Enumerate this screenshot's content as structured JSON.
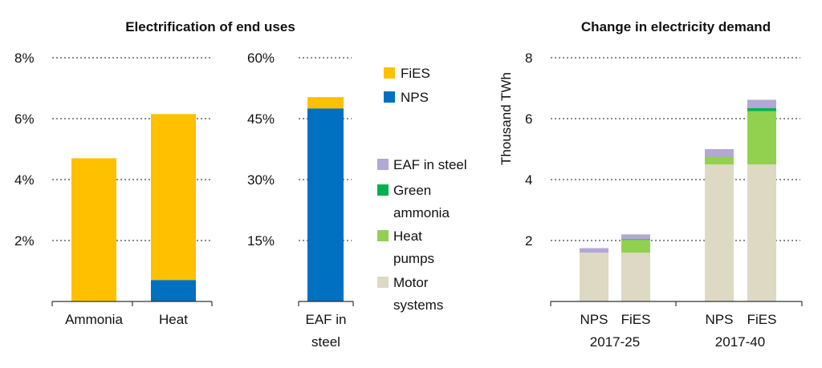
{
  "chart_data": [
    {
      "type": "bar",
      "title": "Electrification of end uses",
      "categories": [
        "Ammonia",
        "Heat"
      ],
      "ylim": [
        0,
        8
      ],
      "yticks": [
        2,
        4,
        6,
        8
      ],
      "ytick_labels": [
        "2%",
        "4%",
        "6%",
        "8%"
      ],
      "series": [
        {
          "name": "NPS",
          "values": [
            0,
            0.7
          ]
        },
        {
          "name": "FiES",
          "values": [
            4.7,
            6.15
          ]
        }
      ],
      "grid": true
    },
    {
      "type": "bar",
      "categories": [
        "EAF in steel"
      ],
      "ylim": [
        0,
        60
      ],
      "yticks": [
        15,
        30,
        45,
        60
      ],
      "ytick_labels": [
        "15%",
        "30%",
        "45%",
        "60%"
      ],
      "series": [
        {
          "name": "NPS",
          "values": [
            47.5
          ]
        },
        {
          "name": "FiES",
          "values": [
            50.3
          ]
        }
      ],
      "grid": true
    },
    {
      "type": "bar",
      "stacked": true,
      "title": "Change in electricity demand",
      "ylabel": "Thousand TWh",
      "ylim": [
        0,
        8
      ],
      "yticks": [
        2,
        4,
        6,
        8
      ],
      "groups": [
        "2017-25",
        "2017-40"
      ],
      "categories": [
        "NPS",
        "FiES",
        "NPS",
        "FiES"
      ],
      "series": [
        {
          "name": "Motor systems",
          "values": [
            1.6,
            1.6,
            4.5,
            4.5
          ]
        },
        {
          "name": "Heat pumps",
          "values": [
            0.0,
            0.42,
            0.25,
            1.75
          ]
        },
        {
          "name": "Green ammonia",
          "values": [
            0.0,
            0.02,
            0.0,
            0.1
          ]
        },
        {
          "name": "EAF in steel",
          "values": [
            0.15,
            0.16,
            0.25,
            0.27
          ]
        }
      ],
      "grid": true
    }
  ],
  "legend": {
    "left": [
      {
        "label": "FiES",
        "color": "#FFC000"
      },
      {
        "label": "NPS",
        "color": "#0070C0"
      }
    ],
    "right": [
      {
        "label": "EAF in steel",
        "color": "#B4A7D6"
      },
      {
        "label_lines": [
          "Green",
          "ammonia"
        ],
        "color": "#00B050"
      },
      {
        "label_lines": [
          "Heat",
          "pumps"
        ],
        "color": "#92D050"
      },
      {
        "label_lines": [
          "Motor",
          "systems"
        ],
        "color": "#DDD9C3"
      }
    ]
  },
  "colors": {
    "NPS": "#0070C0",
    "FiES": "#FFC000",
    "Motor systems": "#DDD9C3",
    "Heat pumps": "#92D050",
    "Green ammonia": "#00B050",
    "EAF in steel": "#B4A7D6"
  },
  "labels": {
    "eaf_cat_lines": [
      "EAF in",
      "steel"
    ]
  }
}
